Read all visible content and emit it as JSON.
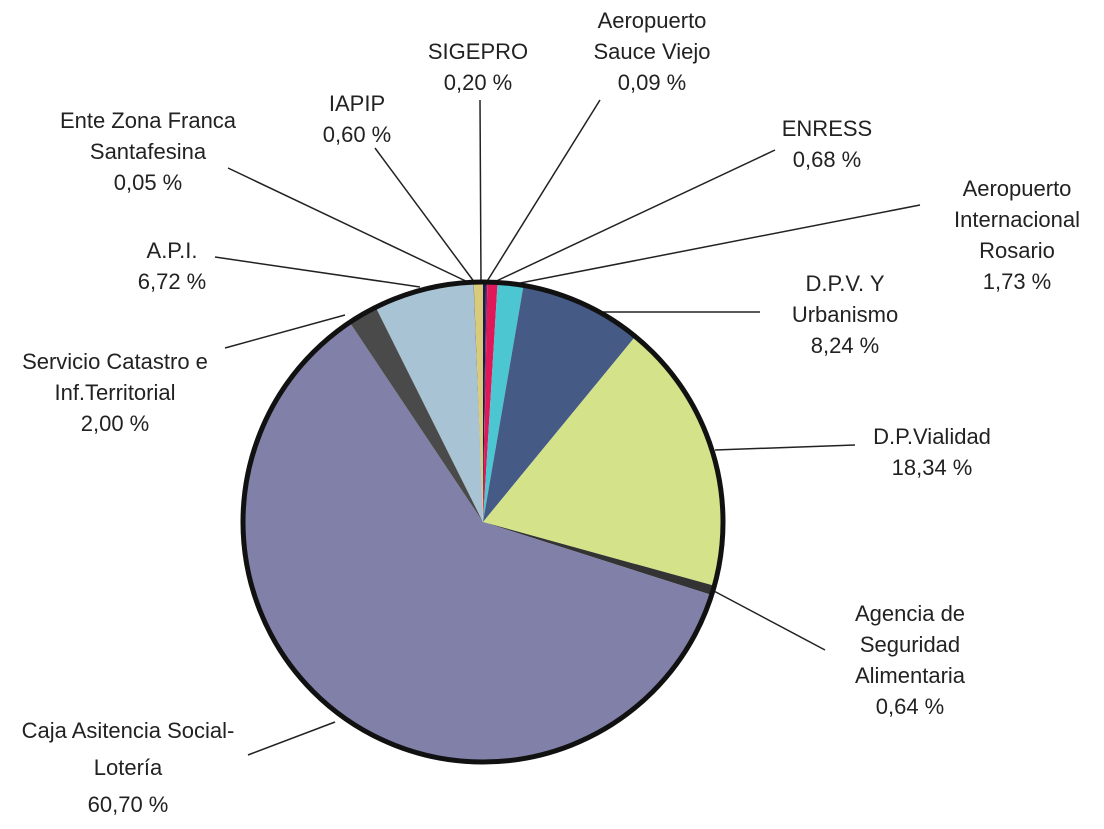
{
  "chart_data": {
    "type": "pie",
    "categories": [
      "SIGEPRO",
      "Aeropuerto Sauce Viejo",
      "ENRESS",
      "Aeropuerto Internacional Rosario",
      "D.P.V. Y Urbanismo",
      "D.P.Vialidad",
      "Agencia de Seguridad Alimentaria",
      "Caja Asitencia Social-Lotería",
      "Servicio Catastro e Inf.Territorial",
      "A.P.I.",
      "Ente Zona Franca Santafesina",
      "IAPIP"
    ],
    "values": [
      0.2,
      0.09,
      0.68,
      1.73,
      8.24,
      18.34,
      0.64,
      60.7,
      2.0,
      6.72,
      0.05,
      0.6
    ],
    "value_labels": [
      "0,20 %",
      "0,09 %",
      "0,68 %",
      "1,73 %",
      "8,24 %",
      "18,34 %",
      "0,64 %",
      "60,70 %",
      "2,00 %",
      "6,72 %",
      "0,05 %",
      "0,60 %"
    ],
    "colors": [
      "#1c1c4c",
      "#6b2b6b",
      "#e0185a",
      "#4cc6d0",
      "#465a86",
      "#d4e28a",
      "#333333",
      "#8080a8",
      "#4a4a4a",
      "#a8c4d4",
      "#888888",
      "#d8cc7a"
    ]
  }
}
